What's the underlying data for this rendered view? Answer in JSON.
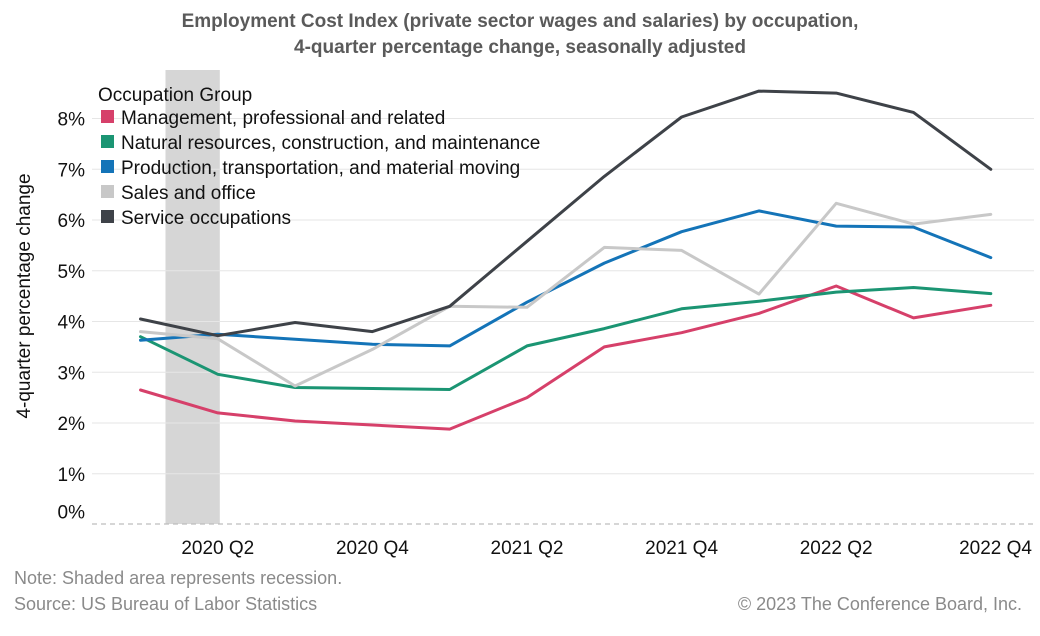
{
  "chart_data": {
    "type": "line",
    "title_line1": "Employment Cost Index (private sector wages and salaries) by occupation,",
    "title_line2": "4-quarter percentage change, seasonally adjusted",
    "ylabel": "4-quarter percentage change",
    "xlabel": "",
    "ylim": [
      0,
      8.6
    ],
    "yticks": [
      0,
      1,
      2,
      3,
      4,
      5,
      6,
      7,
      8
    ],
    "ytick_labels": [
      "0%",
      "1%",
      "2%",
      "3%",
      "4%",
      "5%",
      "6%",
      "7%",
      "8%"
    ],
    "x": [
      "2020 Q1",
      "2020 Q2",
      "2020 Q3",
      "2020 Q4",
      "2021 Q1",
      "2021 Q2",
      "2021 Q3",
      "2021 Q4",
      "2022 Q1",
      "2022 Q2",
      "2022 Q3",
      "2022 Q4"
    ],
    "xtick_labels": [
      "2020 Q2",
      "2020 Q4",
      "2021 Q2",
      "2021 Q4",
      "2022 Q2",
      "2022 Q4"
    ],
    "recession_shade": [
      "2020 Q1",
      "2020 Q2"
    ],
    "legend_title": "Occupation Group",
    "series": [
      {
        "name": "Management, professional and related",
        "color": "#d6406a",
        "values": [
          2.65,
          2.2,
          2.04,
          1.96,
          1.88,
          2.5,
          3.5,
          3.78,
          4.16,
          4.7,
          4.07,
          4.32
        ]
      },
      {
        "name": "Natural resources, construction, and maintenance",
        "color": "#1b9573",
        "values": [
          3.7,
          2.96,
          2.7,
          2.68,
          2.66,
          3.52,
          3.86,
          4.25,
          4.4,
          4.58,
          4.67,
          4.55
        ]
      },
      {
        "name": "Production, transportation, and material moving",
        "color": "#1474b8",
        "values": [
          3.63,
          3.75,
          3.65,
          3.55,
          3.52,
          4.38,
          5.15,
          5.77,
          6.18,
          5.88,
          5.86,
          5.26
        ]
      },
      {
        "name": "Sales and office",
        "color": "#c8c8c8",
        "values": [
          3.8,
          3.66,
          2.73,
          3.45,
          4.3,
          4.28,
          5.46,
          5.4,
          4.54,
          6.33,
          5.92,
          6.11
        ]
      },
      {
        "name": "Service occupations",
        "color": "#3e4248",
        "values": [
          4.05,
          3.72,
          3.98,
          3.8,
          4.3,
          5.58,
          6.86,
          8.03,
          8.54,
          8.5,
          8.12,
          7.0
        ]
      }
    ],
    "note": "Note: Shaded area represents recession.",
    "source": "Source: US Bureau of Labor Statistics",
    "copyright": "© 2023 The Conference Board, Inc."
  }
}
